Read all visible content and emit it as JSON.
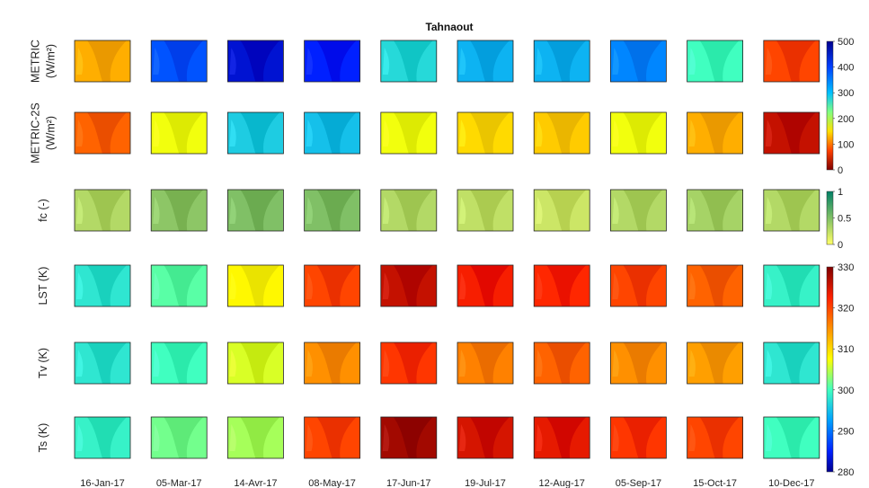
{
  "chart_data": {
    "type": "heatmap",
    "title": "Tahnaout",
    "columns": [
      "16-Jan-17",
      "05-Mar-17",
      "14-Avr-17",
      "08-May-17",
      "17-Jun-17",
      "19-Jul-17",
      "12-Aug-17",
      "05-Sep-17",
      "15-Oct-17",
      "10-Dec-17"
    ],
    "rows": [
      {
        "label_lines": [
          "METRIC",
          "(W/m²)"
        ],
        "scale": "energy",
        "values": [
          170,
          420,
          470,
          450,
          330,
          360,
          360,
          390,
          300,
          100
        ]
      },
      {
        "label_lines": [
          "METRIC-2S",
          "(W/m²)"
        ],
        "scale": "energy",
        "values": [
          120,
          230,
          340,
          350,
          230,
          200,
          190,
          230,
          170,
          40
        ]
      },
      {
        "label_lines": [
          "fc (-)"
        ],
        "scale": "fraction",
        "values": [
          0.3,
          0.45,
          0.5,
          0.5,
          0.3,
          0.25,
          0.2,
          0.3,
          0.35,
          0.3
        ]
      },
      {
        "label_lines": [
          "LST (K)"
        ],
        "scale": "temperature",
        "values": [
          298,
          301,
          308,
          320,
          326,
          323,
          322,
          320,
          318,
          299
        ]
      },
      {
        "label_lines": [
          "Tv (K)"
        ],
        "scale": "temperature",
        "values": [
          298,
          300,
          306,
          315,
          321,
          316,
          318,
          315,
          314,
          298
        ]
      },
      {
        "label_lines": [
          "Ts (K)"
        ],
        "scale": "temperature",
        "values": [
          299,
          302,
          304,
          320,
          328,
          325,
          324,
          321,
          320,
          300
        ]
      }
    ],
    "colorbars": [
      {
        "name": "energy",
        "ticks": [
          "500",
          "400",
          "300",
          "200",
          "100",
          "0"
        ],
        "min": 0,
        "max": 500,
        "colormap": "jet-reversed"
      },
      {
        "name": "fraction",
        "ticks": [
          "1",
          "0.5",
          "0"
        ],
        "min": 0,
        "max": 1,
        "colormap": "summer-reversed"
      },
      {
        "name": "temperature",
        "ticks": [
          "330",
          "320",
          "310",
          "300",
          "290",
          "280"
        ],
        "min": 280,
        "max": 330,
        "colormap": "jet"
      }
    ]
  }
}
